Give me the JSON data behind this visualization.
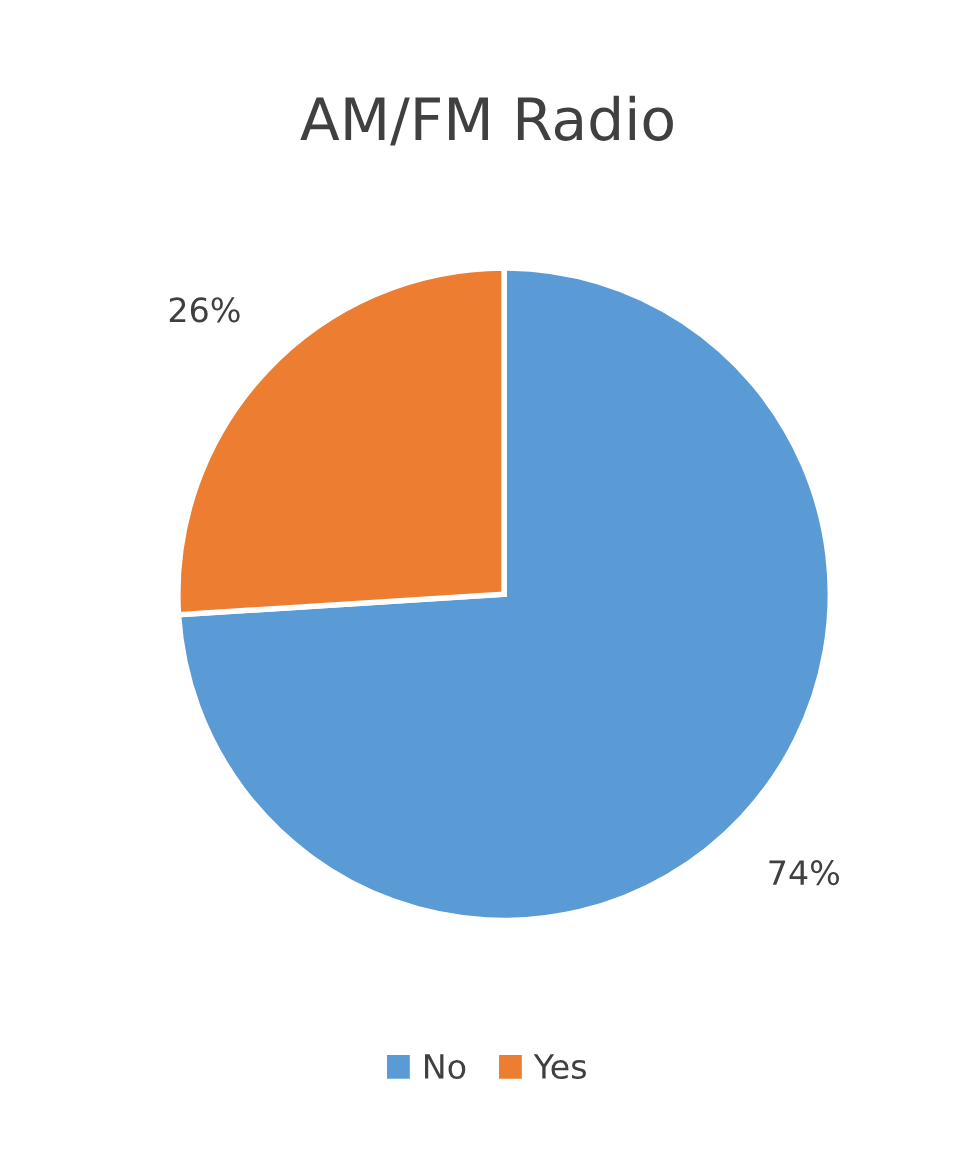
{
  "chart_data": {
    "type": "pie",
    "title": "AM/FM Radio",
    "categories": [
      "No",
      "Yes"
    ],
    "values": [
      74,
      26
    ],
    "colors": [
      "#5b9bd5",
      "#ed7d31"
    ],
    "value_labels": [
      "74%",
      "26%"
    ],
    "legend": "bottom"
  }
}
